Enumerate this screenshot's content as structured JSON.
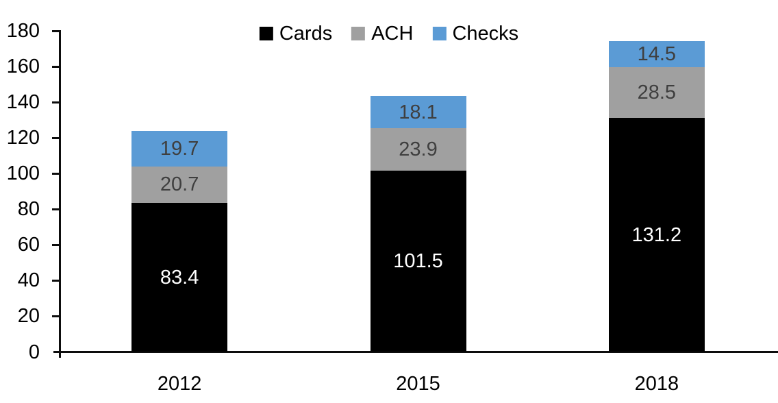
{
  "chart_data": {
    "type": "bar",
    "stacked": true,
    "title": "",
    "xlabel": "",
    "ylabel": "",
    "categories": [
      "2012",
      "2015",
      "2018"
    ],
    "series": [
      {
        "name": "Cards",
        "color": "#000000",
        "label_color": "#ffffff",
        "values": [
          83.4,
          101.5,
          131.2
        ]
      },
      {
        "name": "ACH",
        "color": "#a0a0a0",
        "label_color": "#3f3f3f",
        "values": [
          20.7,
          23.9,
          28.5
        ]
      },
      {
        "name": "Checks",
        "color": "#5b9bd5",
        "label_color": "#3f3f3f",
        "values": [
          19.7,
          18.1,
          14.5
        ]
      }
    ],
    "totals": [
      123.8,
      143.5,
      174.2
    ],
    "ylim": [
      0,
      180
    ],
    "ytick_step": 20,
    "ytick_labels": [
      "0",
      "20",
      "40",
      "60",
      "80",
      "100",
      "120",
      "140",
      "160",
      "180"
    ],
    "grid": false,
    "value_labels": true,
    "legend_position": "top-center",
    "axis_color": "#0d0d0d"
  }
}
